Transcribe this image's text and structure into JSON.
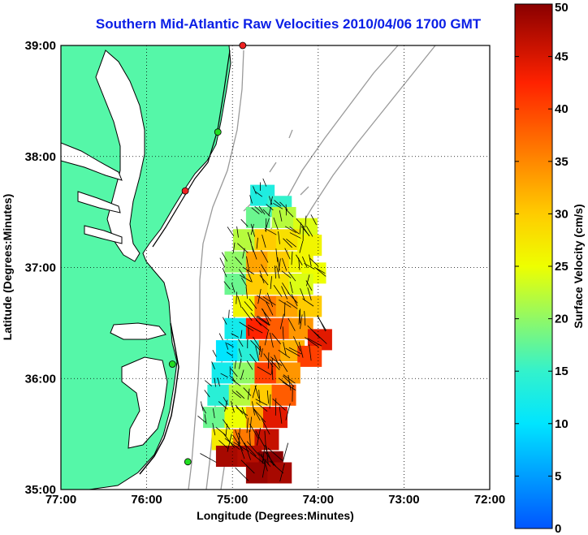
{
  "title": "Southern Mid-Atlantic Raw Velocities 2010/04/06 1700 GMT",
  "xlabel": "Longitude (Degrees:Minutes)",
  "ylabel": "Latitude (Degrees:Minutes)",
  "colorbar_label": "Surface Velocity (cm/s)",
  "colors": {
    "land": "#55f7a8",
    "coast": "#000000",
    "bathymetry": "#9a9a9a",
    "station_green": "#22dd22",
    "station_red": "#ee2222"
  },
  "chart_data": {
    "type": "heatmap",
    "projection": "lon-lat",
    "xlim": [
      77,
      72
    ],
    "ylim": [
      35,
      39
    ],
    "x_ticks": [
      "77:00",
      "76:00",
      "75:00",
      "74:00",
      "73:00",
      "72:00"
    ],
    "x_tick_values": [
      77,
      76,
      75,
      74,
      73,
      72
    ],
    "y_ticks": [
      "35:00",
      "36:00",
      "37:00",
      "38:00",
      "39:00"
    ],
    "y_tick_values": [
      35,
      36,
      37,
      38,
      39
    ],
    "grid": true,
    "colorbar": {
      "min": 0,
      "max": 50,
      "ticks": [
        0,
        5,
        10,
        15,
        20,
        25,
        30,
        35,
        40,
        45,
        50
      ]
    },
    "stations": [
      {
        "lon": 74.88,
        "lat": 39.0,
        "status": "red"
      },
      {
        "lon": 75.17,
        "lat": 38.22,
        "status": "green"
      },
      {
        "lon": 75.55,
        "lat": 37.69,
        "status": "red"
      },
      {
        "lon": 75.7,
        "lat": 36.13,
        "status": "green"
      },
      {
        "lon": 75.52,
        "lat": 35.25,
        "status": "green"
      }
    ],
    "velocity_cells": [
      {
        "lon": 74.65,
        "lat": 37.65,
        "v": 13
      },
      {
        "lon": 74.45,
        "lat": 37.55,
        "v": 15
      },
      {
        "lon": 74.7,
        "lat": 37.45,
        "v": 18
      },
      {
        "lon": 74.4,
        "lat": 37.45,
        "v": 22
      },
      {
        "lon": 74.15,
        "lat": 37.35,
        "v": 24
      },
      {
        "lon": 74.85,
        "lat": 37.25,
        "v": 22
      },
      {
        "lon": 74.6,
        "lat": 37.25,
        "v": 30
      },
      {
        "lon": 74.35,
        "lat": 37.25,
        "v": 28
      },
      {
        "lon": 74.1,
        "lat": 37.2,
        "v": 26
      },
      {
        "lon": 74.95,
        "lat": 37.05,
        "v": 20
      },
      {
        "lon": 74.7,
        "lat": 37.05,
        "v": 33
      },
      {
        "lon": 74.45,
        "lat": 37.05,
        "v": 30
      },
      {
        "lon": 74.2,
        "lat": 37.05,
        "v": 26
      },
      {
        "lon": 74.05,
        "lat": 36.95,
        "v": 25
      },
      {
        "lon": 74.95,
        "lat": 36.85,
        "v": 18
      },
      {
        "lon": 74.7,
        "lat": 36.85,
        "v": 30
      },
      {
        "lon": 74.45,
        "lat": 36.85,
        "v": 28
      },
      {
        "lon": 74.2,
        "lat": 36.85,
        "v": 24
      },
      {
        "lon": 74.85,
        "lat": 36.65,
        "v": 26
      },
      {
        "lon": 74.6,
        "lat": 36.65,
        "v": 36
      },
      {
        "lon": 74.35,
        "lat": 36.65,
        "v": 33
      },
      {
        "lon": 74.1,
        "lat": 36.65,
        "v": 30
      },
      {
        "lon": 74.95,
        "lat": 36.45,
        "v": 12
      },
      {
        "lon": 74.7,
        "lat": 36.45,
        "v": 42
      },
      {
        "lon": 74.45,
        "lat": 36.45,
        "v": 38
      },
      {
        "lon": 74.2,
        "lat": 36.45,
        "v": 34
      },
      {
        "lon": 73.98,
        "lat": 36.35,
        "v": 44
      },
      {
        "lon": 75.05,
        "lat": 36.25,
        "v": 10
      },
      {
        "lon": 74.8,
        "lat": 36.25,
        "v": 14
      },
      {
        "lon": 74.55,
        "lat": 36.25,
        "v": 36
      },
      {
        "lon": 74.3,
        "lat": 36.25,
        "v": 32
      },
      {
        "lon": 74.1,
        "lat": 36.2,
        "v": 40
      },
      {
        "lon": 75.1,
        "lat": 36.05,
        "v": 12
      },
      {
        "lon": 74.85,
        "lat": 36.05,
        "v": 20
      },
      {
        "lon": 74.6,
        "lat": 36.05,
        "v": 40
      },
      {
        "lon": 74.35,
        "lat": 36.05,
        "v": 34
      },
      {
        "lon": 75.15,
        "lat": 35.85,
        "v": 14
      },
      {
        "lon": 74.9,
        "lat": 35.85,
        "v": 22
      },
      {
        "lon": 74.65,
        "lat": 35.85,
        "v": 30
      },
      {
        "lon": 74.4,
        "lat": 35.85,
        "v": 38
      },
      {
        "lon": 75.2,
        "lat": 35.65,
        "v": 18
      },
      {
        "lon": 74.95,
        "lat": 35.65,
        "v": 25
      },
      {
        "lon": 74.7,
        "lat": 35.65,
        "v": 33
      },
      {
        "lon": 74.5,
        "lat": 35.65,
        "v": 44
      },
      {
        "lon": 75.1,
        "lat": 35.45,
        "v": 27
      },
      {
        "lon": 74.85,
        "lat": 35.45,
        "v": 36
      },
      {
        "lon": 74.6,
        "lat": 35.45,
        "v": 46
      },
      {
        "lon": 75.05,
        "lat": 35.3,
        "v": 48
      },
      {
        "lon": 74.8,
        "lat": 35.3,
        "v": 47
      },
      {
        "lon": 74.55,
        "lat": 35.25,
        "v": 50
      },
      {
        "lon": 74.7,
        "lat": 35.15,
        "v": 49
      },
      {
        "lon": 74.45,
        "lat": 35.15,
        "v": 48
      }
    ]
  }
}
